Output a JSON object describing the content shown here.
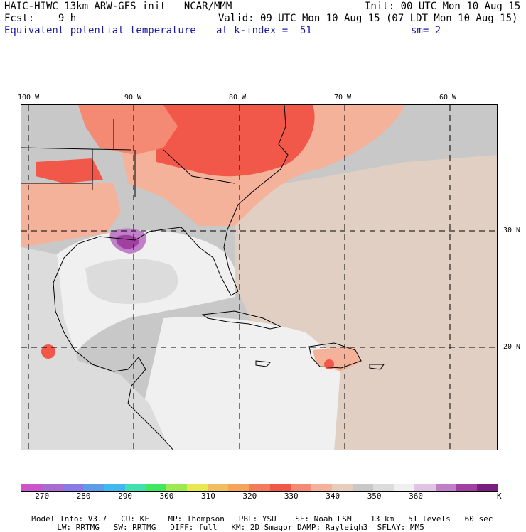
{
  "header": {
    "line1_left": "HAIC-HIWC 13km ARW-GFS init   NCAR/MMM",
    "line1_right": "Init: 00 UTC Mon 10 Aug 15",
    "line2_left": "Fcst:    9 h",
    "line2_right": "Valid: 09 UTC Mon 10 Aug 15 (07 LDT Mon 10 Aug 15)",
    "line3_field": "Equivalent potential temperature",
    "line3_level": "at k-index =  51",
    "line3_smooth": "sm= 2"
  },
  "axes": {
    "lon_labels": [
      "100 W",
      "90 W",
      "80 W",
      "70 W",
      "60 W"
    ],
    "lat_labels": [
      "30 N",
      "20 N"
    ]
  },
  "colorbar": {
    "colors": [
      "#cc55cc",
      "#a86cd0",
      "#8a7ae8",
      "#5c9ce8",
      "#40b8f0",
      "#40e0b0",
      "#40e860",
      "#9ee850",
      "#e8e850",
      "#f0c060",
      "#f5a45a",
      "#f47c5a",
      "#f2584a",
      "#f48a74",
      "#f4b29a",
      "#e8ccbc",
      "#c8c8c8",
      "#dcdcdc",
      "#f0f0f0",
      "#e0c4e4",
      "#c080c8",
      "#a040a0",
      "#7a1e80"
    ],
    "tick_labels": [
      "270",
      "280",
      "290",
      "300",
      "310",
      "320",
      "330",
      "340",
      "350",
      "360"
    ],
    "unit": "K"
  },
  "model_info": {
    "line1": [
      "Model Info: V3.7",
      "CU: KF",
      "MP: Thompson",
      "PBL: YSU",
      "SF: Noah LSM",
      "13 km",
      "51 levels",
      "60 sec"
    ],
    "line2": [
      "LW: RRTMG",
      "SW: RRTMG",
      "DIFF: full",
      "KM: 2D Smagor",
      "DAMP: Rayleigh3",
      "SFLAY: MM5"
    ]
  }
}
